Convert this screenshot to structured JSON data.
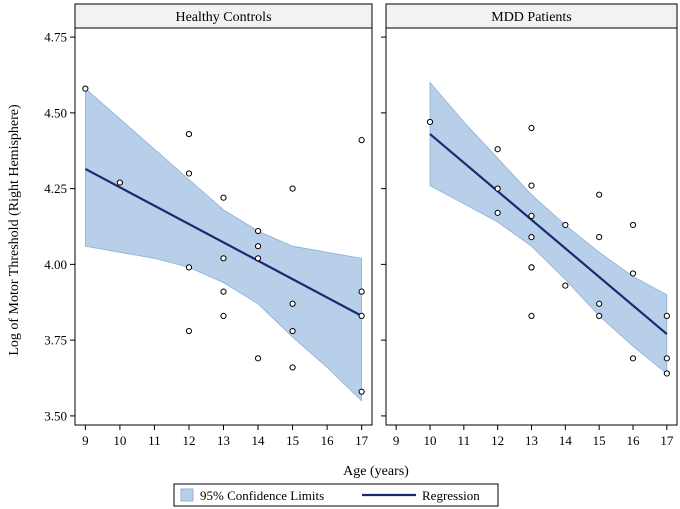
{
  "chart_data": [
    {
      "type": "scatter",
      "title": "Healthy Controls",
      "xlabel": "Age (years)",
      "ylabel": "Log of Motor Threshold (Right Hemisphere)",
      "xlim": [
        8.7,
        17.3
      ],
      "ylim": [
        3.47,
        4.78
      ],
      "xticks": [
        9,
        10,
        11,
        12,
        13,
        14,
        15,
        16,
        17
      ],
      "yticks": [
        3.5,
        3.75,
        4.0,
        4.25,
        4.5,
        4.75
      ],
      "ytick_labels": [
        "3.50",
        "3.75",
        "4.00",
        "4.25",
        "4.50",
        "4.75"
      ],
      "points": [
        {
          "x": 9,
          "y": 4.58
        },
        {
          "x": 10,
          "y": 4.27
        },
        {
          "x": 12,
          "y": 4.43
        },
        {
          "x": 12,
          "y": 4.3
        },
        {
          "x": 12,
          "y": 3.99
        },
        {
          "x": 12,
          "y": 3.78
        },
        {
          "x": 13,
          "y": 4.22
        },
        {
          "x": 13,
          "y": 4.02
        },
        {
          "x": 13,
          "y": 3.91
        },
        {
          "x": 13,
          "y": 3.83
        },
        {
          "x": 14,
          "y": 4.11
        },
        {
          "x": 14,
          "y": 4.06
        },
        {
          "x": 14,
          "y": 4.02
        },
        {
          "x": 14,
          "y": 3.69
        },
        {
          "x": 15,
          "y": 4.25
        },
        {
          "x": 15,
          "y": 3.87
        },
        {
          "x": 15,
          "y": 3.78
        },
        {
          "x": 15,
          "y": 3.66
        },
        {
          "x": 17,
          "y": 4.41
        },
        {
          "x": 17,
          "y": 3.91
        },
        {
          "x": 17,
          "y": 3.83
        },
        {
          "x": 17,
          "y": 3.58
        }
      ],
      "regression": {
        "x": [
          9,
          17
        ],
        "y": [
          4.315,
          3.83
        ]
      },
      "confidence_band": {
        "x": [
          9,
          10,
          11,
          12,
          13,
          14,
          15,
          16,
          17
        ],
        "lower": [
          4.06,
          4.04,
          4.02,
          3.99,
          3.94,
          3.87,
          3.76,
          3.66,
          3.55
        ],
        "upper": [
          4.58,
          4.48,
          4.38,
          4.28,
          4.18,
          4.11,
          4.06,
          4.04,
          4.02
        ]
      }
    },
    {
      "type": "scatter",
      "title": "MDD Patients",
      "xlabel": "Age (years)",
      "ylabel": "Log of Motor Threshold (Right Hemisphere)",
      "xlim": [
        8.7,
        17.3
      ],
      "ylim": [
        3.47,
        4.78
      ],
      "xticks": [
        9,
        10,
        11,
        12,
        13,
        14,
        15,
        16,
        17
      ],
      "yticks": [
        3.5,
        3.75,
        4.0,
        4.25,
        4.5,
        4.75
      ],
      "ytick_labels": [
        "3.50",
        "3.75",
        "4.00",
        "4.25",
        "4.50",
        "4.75"
      ],
      "points": [
        {
          "x": 10,
          "y": 4.47
        },
        {
          "x": 12,
          "y": 4.38
        },
        {
          "x": 12,
          "y": 4.25
        },
        {
          "x": 12,
          "y": 4.17
        },
        {
          "x": 13,
          "y": 4.45
        },
        {
          "x": 13,
          "y": 4.26
        },
        {
          "x": 13,
          "y": 4.16
        },
        {
          "x": 13,
          "y": 4.09
        },
        {
          "x": 13,
          "y": 3.99
        },
        {
          "x": 13,
          "y": 3.99
        },
        {
          "x": 13,
          "y": 3.83
        },
        {
          "x": 14,
          "y": 4.13
        },
        {
          "x": 14,
          "y": 3.93
        },
        {
          "x": 15,
          "y": 4.23
        },
        {
          "x": 15,
          "y": 4.09
        },
        {
          "x": 15,
          "y": 3.87
        },
        {
          "x": 15,
          "y": 3.83
        },
        {
          "x": 16,
          "y": 4.13
        },
        {
          "x": 16,
          "y": 3.97
        },
        {
          "x": 16,
          "y": 3.69
        },
        {
          "x": 17,
          "y": 3.83
        },
        {
          "x": 17,
          "y": 3.69
        },
        {
          "x": 17,
          "y": 3.64
        }
      ],
      "regression": {
        "x": [
          10,
          17
        ],
        "y": [
          4.43,
          3.77
        ]
      },
      "confidence_band": {
        "x": [
          10,
          11,
          12,
          13,
          14,
          15,
          16,
          17
        ],
        "lower": [
          4.26,
          4.2,
          4.14,
          4.06,
          3.95,
          3.83,
          3.73,
          3.64
        ],
        "upper": [
          4.6,
          4.47,
          4.35,
          4.23,
          4.13,
          4.04,
          3.96,
          3.9
        ]
      }
    }
  ],
  "legend": {
    "band_label": "95% Confidence Limits",
    "line_label": "Regression"
  },
  "colors": {
    "band_fill": "#b8cfea",
    "band_edge": "#8fb0d8",
    "regression_line": "#1a2a6c",
    "point_stroke": "#000000",
    "panel_header": "#f2f2f2"
  }
}
